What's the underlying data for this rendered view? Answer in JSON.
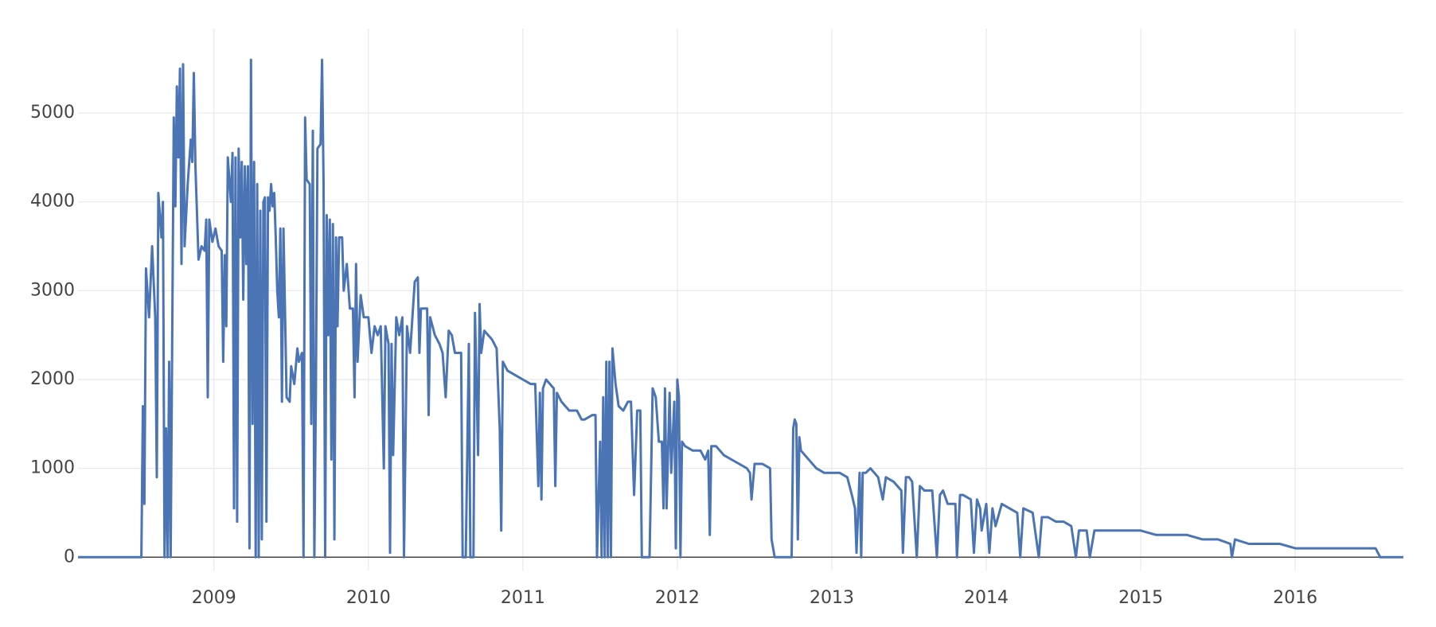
{
  "chart_data": {
    "type": "line",
    "x": [
      2008.12,
      2008.53,
      2008.54,
      2008.55,
      2008.56,
      2008.58,
      2008.6,
      2008.62,
      2008.63,
      2008.64,
      2008.66,
      2008.67,
      2008.68,
      2008.69,
      2008.7,
      2008.71,
      2008.72,
      2008.74,
      2008.75,
      2008.76,
      2008.77,
      2008.78,
      2008.79,
      2008.8,
      2008.81,
      2008.83,
      2008.85,
      2008.86,
      2008.87,
      2008.88,
      2008.9,
      2008.92,
      2008.94,
      2008.95,
      2008.96,
      2008.97,
      2008.99,
      2009.01,
      2009.03,
      2009.05,
      2009.06,
      2009.07,
      2009.08,
      2009.09,
      2009.11,
      2009.12,
      2009.13,
      2009.14,
      2009.15,
      2009.16,
      2009.17,
      2009.18,
      2009.19,
      2009.2,
      2009.21,
      2009.22,
      2009.23,
      2009.24,
      2009.25,
      2009.26,
      2009.27,
      2009.28,
      2009.29,
      2009.3,
      2009.31,
      2009.32,
      2009.33,
      2009.34,
      2009.35,
      2009.36,
      2009.37,
      2009.38,
      2009.39,
      2009.4,
      2009.41,
      2009.42,
      2009.43,
      2009.44,
      2009.45,
      2009.46,
      2009.47,
      2009.49,
      2009.5,
      2009.52,
      2009.54,
      2009.55,
      2009.57,
      2009.58,
      2009.59,
      2009.6,
      2009.62,
      2009.63,
      2009.64,
      2009.65,
      2009.66,
      2009.67,
      2009.69,
      2009.7,
      2009.71,
      2009.72,
      2009.73,
      2009.74,
      2009.75,
      2009.76,
      2009.77,
      2009.78,
      2009.79,
      2009.8,
      2009.81,
      2009.83,
      2009.84,
      2009.86,
      2009.88,
      2009.9,
      2009.91,
      2009.92,
      2009.93,
      2009.95,
      2009.97,
      2010.0,
      2010.02,
      2010.04,
      2010.06,
      2010.08,
      2010.1,
      2010.11,
      2010.13,
      2010.14,
      2010.15,
      2010.16,
      2010.18,
      2010.2,
      2010.22,
      2010.23,
      2010.25,
      2010.27,
      2010.3,
      2010.32,
      2010.33,
      2010.34,
      2010.38,
      2010.39,
      2010.4,
      2010.43,
      2010.46,
      2010.48,
      2010.5,
      2010.52,
      2010.54,
      2010.56,
      2010.58,
      2010.6,
      2010.61,
      2010.63,
      2010.65,
      2010.66,
      2010.68,
      2010.69,
      2010.71,
      2010.72,
      2010.73,
      2010.75,
      2010.8,
      2010.83,
      2010.85,
      2010.86,
      2010.87,
      2010.9,
      2010.95,
      2011.0,
      2011.05,
      2011.08,
      2011.1,
      2011.11,
      2011.12,
      2011.13,
      2011.15,
      2011.2,
      2011.21,
      2011.22,
      2011.25,
      2011.3,
      2011.35,
      2011.38,
      2011.4,
      2011.45,
      2011.47,
      2011.48,
      2011.5,
      2011.51,
      2011.52,
      2011.53,
      2011.54,
      2011.55,
      2011.56,
      2011.57,
      2011.58,
      2011.6,
      2011.62,
      2011.65,
      2011.68,
      2011.7,
      2011.72,
      2011.74,
      2011.76,
      2011.77,
      2011.82,
      2011.84,
      2011.86,
      2011.88,
      2011.9,
      2011.91,
      2011.92,
      2011.93,
      2011.95,
      2011.96,
      2011.98,
      2011.99,
      2012.0,
      2012.01,
      2012.02,
      2012.03,
      2012.05,
      2012.1,
      2012.15,
      2012.18,
      2012.2,
      2012.21,
      2012.22,
      2012.25,
      2012.3,
      2012.35,
      2012.4,
      2012.45,
      2012.47,
      2012.48,
      2012.5,
      2012.55,
      2012.6,
      2012.61,
      2012.63,
      2012.74,
      2012.75,
      2012.76,
      2012.77,
      2012.78,
      2012.79,
      2012.8,
      2012.85,
      2012.9,
      2012.95,
      2013.0,
      2013.05,
      2013.1,
      2013.13,
      2013.15,
      2013.16,
      2013.18,
      2013.19,
      2013.2,
      2013.22,
      2013.25,
      2013.3,
      2013.33,
      2013.35,
      2013.4,
      2013.45,
      2013.46,
      2013.48,
      2013.5,
      2013.52,
      2013.55,
      2013.57,
      2013.6,
      2013.65,
      2013.68,
      2013.7,
      2013.72,
      2013.75,
      2013.8,
      2013.81,
      2013.83,
      2013.85,
      2013.9,
      2013.92,
      2013.94,
      2013.96,
      2013.97,
      2014.0,
      2014.02,
      2014.04,
      2014.06,
      2014.1,
      2014.15,
      2014.2,
      2014.22,
      2014.24,
      2014.3,
      2014.34,
      2014.36,
      2014.4,
      2014.45,
      2014.5,
      2014.55,
      2014.58,
      2014.6,
      2014.65,
      2014.67,
      2014.7,
      2014.8,
      2014.9,
      2015.0,
      2015.1,
      2015.2,
      2015.3,
      2015.4,
      2015.5,
      2015.58,
      2015.59,
      2015.61,
      2015.7,
      2015.8,
      2015.9,
      2016.0,
      2016.1,
      2016.2,
      2016.3,
      2016.4,
      2016.52,
      2016.55,
      2016.7
    ],
    "series": [
      {
        "color": "#4a74b4",
        "values": [
          0,
          0,
          1700,
          600,
          3250,
          2700,
          3500,
          2700,
          900,
          4100,
          3600,
          4000,
          0,
          1450,
          0,
          2200,
          0,
          4950,
          3950,
          5300,
          4500,
          5500,
          3300,
          5550,
          3500,
          4200,
          4700,
          4450,
          5450,
          4400,
          3350,
          3500,
          3450,
          3800,
          1800,
          3800,
          3550,
          3700,
          3500,
          3450,
          2200,
          3400,
          2600,
          4500,
          4000,
          4550,
          550,
          4500,
          400,
          4600,
          3600,
          4450,
          2900,
          4400,
          3300,
          4400,
          100,
          5600,
          1500,
          4450,
          0,
          4200,
          0,
          3900,
          200,
          4000,
          4050,
          400,
          4050,
          3900,
          4200,
          3950,
          4100,
          3600,
          3000,
          2700,
          3700,
          1750,
          3700,
          2800,
          1800,
          1750,
          2150,
          1950,
          2350,
          2200,
          2300,
          0,
          4950,
          4250,
          4200,
          1500,
          4800,
          0,
          1800,
          4600,
          4650,
          5600,
          4200,
          0,
          3850,
          2500,
          3800,
          1100,
          3750,
          200,
          3600,
          2600,
          3600,
          3600,
          3000,
          3300,
          2800,
          2800,
          1800,
          3300,
          2200,
          2950,
          2700,
          2700,
          2300,
          2600,
          2500,
          2600,
          1000,
          2600,
          2400,
          50,
          2400,
          1150,
          2700,
          2500,
          2700,
          0,
          2600,
          2300,
          3100,
          3150,
          2300,
          2800,
          2800,
          1600,
          2700,
          2500,
          2400,
          2300,
          1800,
          2550,
          2500,
          2300,
          2300,
          2300,
          0,
          0,
          2400,
          0,
          0,
          2750,
          1150,
          2850,
          2300,
          2550,
          2450,
          2350,
          1450,
          300,
          2200,
          2100,
          2050,
          2000,
          1950,
          1950,
          800,
          1850,
          650,
          1900,
          2000,
          1900,
          800,
          1850,
          1750,
          1650,
          1650,
          1550,
          1550,
          1600,
          1600,
          0,
          1300,
          0,
          1800,
          0,
          2200,
          0,
          2200,
          0,
          2350,
          1950,
          1700,
          1650,
          1750,
          1750,
          700,
          1650,
          1650,
          0,
          0,
          1900,
          1800,
          1300,
          1300,
          550,
          1900,
          550,
          1850,
          950,
          1750,
          100,
          2000,
          1800,
          0,
          1300,
          1250,
          1200,
          1200,
          1100,
          1200,
          250,
          1250,
          1250,
          1150,
          1100,
          1050,
          1000,
          950,
          650,
          1050,
          1050,
          1000,
          200,
          0,
          0,
          1450,
          1550,
          1500,
          200,
          1350,
          1200,
          1100,
          1000,
          950,
          950,
          950,
          900,
          700,
          550,
          50,
          950,
          0,
          950,
          950,
          1000,
          900,
          650,
          900,
          850,
          750,
          50,
          900,
          900,
          850,
          0,
          800,
          750,
          750,
          0,
          700,
          750,
          600,
          600,
          0,
          700,
          700,
          650,
          50,
          650,
          550,
          300,
          600,
          50,
          550,
          350,
          600,
          550,
          500,
          0,
          550,
          500,
          0,
          450,
          450,
          400,
          400,
          350,
          0,
          300,
          300,
          0,
          300,
          300,
          300,
          300,
          250,
          250,
          250,
          200,
          200,
          150,
          0,
          200,
          150,
          150,
          150,
          100,
          100,
          100,
          100,
          100,
          100,
          0,
          0
        ]
      }
    ],
    "xlim": [
      2008.12,
      2016.7
    ],
    "xticks": [
      2009,
      2010,
      2011,
      2012,
      2013,
      2014,
      2015,
      2016
    ],
    "ylim": [
      -150,
      5950
    ],
    "yticks": [
      0,
      1000,
      2000,
      3000,
      4000,
      5000
    ],
    "grid": true
  }
}
